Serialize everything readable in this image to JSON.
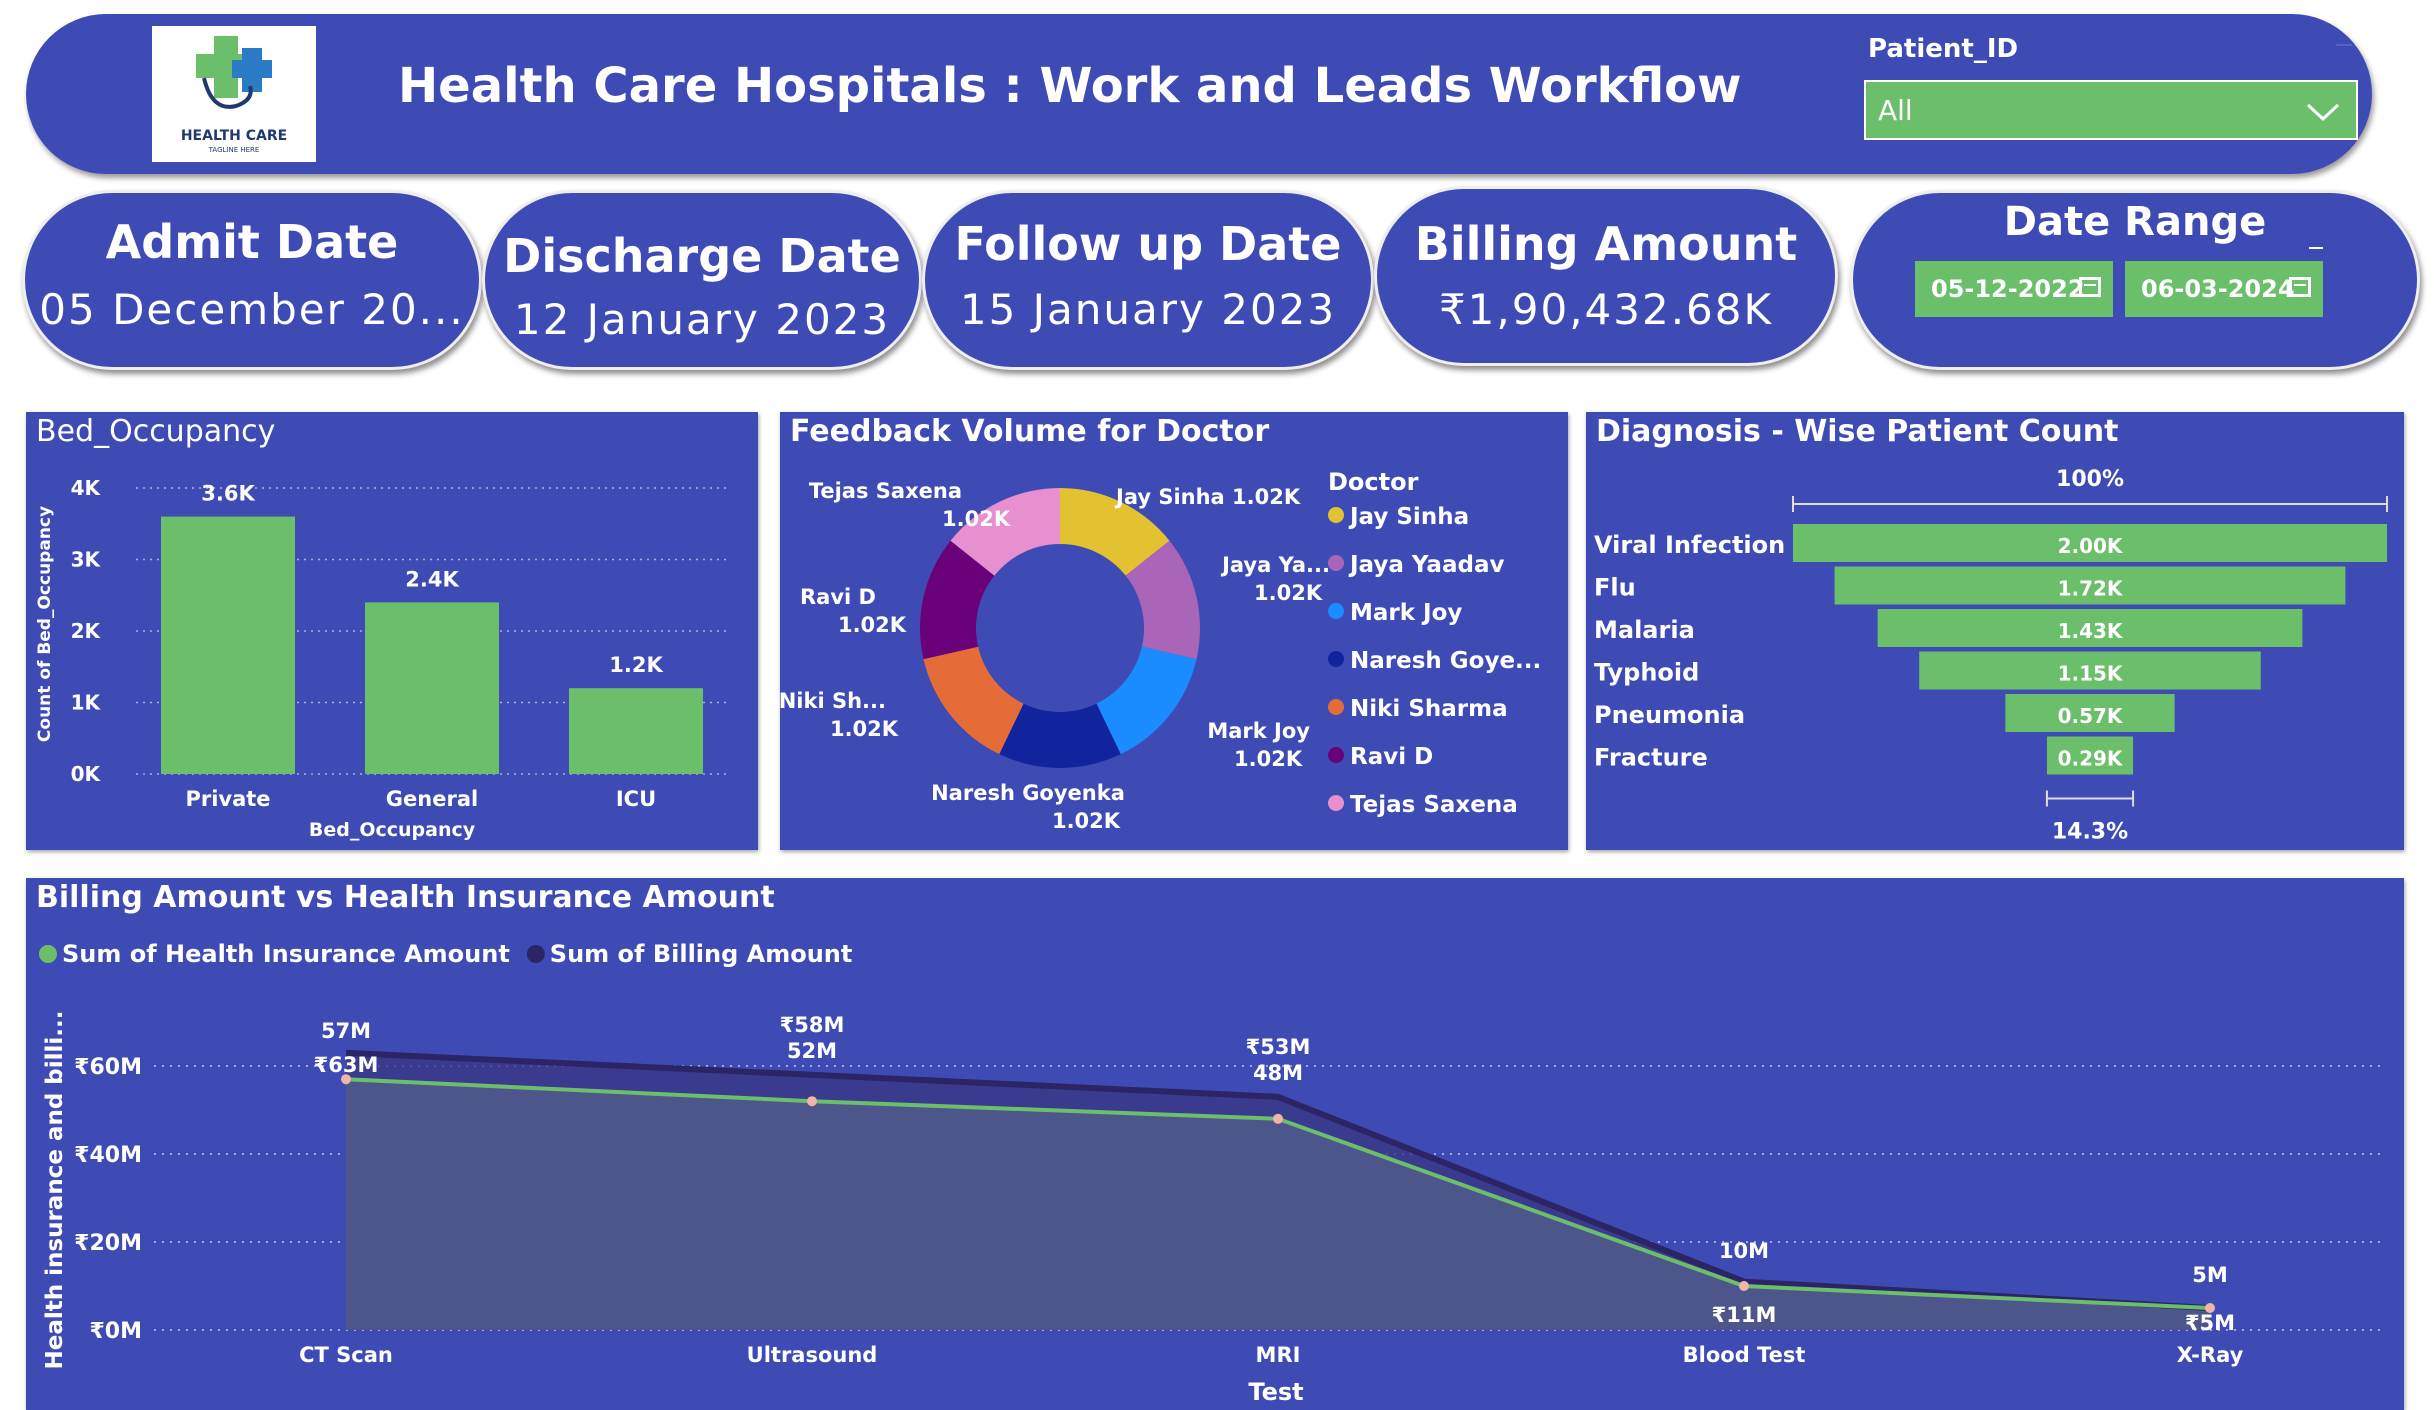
{
  "header": {
    "title": "Health Care Hospitals : Work and Leads Workflow",
    "logo_text": "HEALTH CARE",
    "logo_tagline": "TAGLINE HERE",
    "filter_label": "Patient_ID",
    "filter_value": "All"
  },
  "cards": [
    {
      "title": "Admit Date",
      "value": "05 December 20..."
    },
    {
      "title": "Discharge Date",
      "value": "12 January 2023"
    },
    {
      "title": "Follow up Date",
      "value": "15 January 2023"
    },
    {
      "title": "Billing Amount",
      "value": "₹1,90,432.68K"
    }
  ],
  "date_range": {
    "title": "Date Range",
    "start": "05-12-2022",
    "end": "06-03-2024"
  },
  "colors": {
    "panel": "#3f4bb5",
    "green": "#6cbf6a",
    "dark_line": "#2b2566"
  },
  "bed_occupancy": {
    "title": "Bed_Occupancy",
    "chart_data": {
      "type": "bar",
      "categories": [
        "Private",
        "General",
        "ICU"
      ],
      "values": [
        3600,
        2400,
        1200
      ],
      "data_labels": [
        "3.6K",
        "2.4K",
        "1.2K"
      ],
      "xlabel": "Bed_Occupancy",
      "ylabel": "Count of Bed_Occupancy",
      "yticks": [
        "0K",
        "1K",
        "2K",
        "3K",
        "4K"
      ],
      "ylim": [
        0,
        4000
      ],
      "color": "#6cbf6a"
    }
  },
  "feedback": {
    "title": "Feedback Volume for Doctor",
    "legend_title": "Doctor",
    "legend": [
      "Jay Sinha",
      "Jaya Yaadav",
      "Mark Joy",
      "Naresh Goye...",
      "Niki Sharma",
      "Ravi D",
      "Tejas Saxena"
    ],
    "chart_data": {
      "type": "pie",
      "labels": [
        "Jay Sinha",
        "Jaya Yaadav",
        "Mark Joy",
        "Naresh Goyenka",
        "Niki Sharma",
        "Ravi D",
        "Tejas Saxena"
      ],
      "values": [
        1020,
        1020,
        1020,
        1020,
        1020,
        1020,
        1020
      ],
      "colors": [
        "#e2c231",
        "#a965b8",
        "#1a8cff",
        "#12239e",
        "#e66c37",
        "#6b007b",
        "#e78fcf"
      ],
      "slice_labels": [
        {
          "name": "Jay Sinha",
          "value": "1.02K"
        },
        {
          "name": "Jaya Ya...",
          "value": "1.02K"
        },
        {
          "name": "Mark Joy",
          "value": "1.02K"
        },
        {
          "name": "Naresh Goyenka",
          "value": "1.02K"
        },
        {
          "name": "Niki Sh...",
          "value": "1.02K"
        },
        {
          "name": "Ravi D",
          "value": "1.02K"
        },
        {
          "name": "Tejas Saxena",
          "value": "1.02K"
        }
      ]
    }
  },
  "diagnosis": {
    "title": "Diagnosis - Wise Patient Count",
    "top_label": "100%",
    "bottom_label": "14.3%",
    "chart_data": {
      "type": "bar",
      "categories": [
        "Viral Infection",
        "Flu",
        "Malaria",
        "Typhoid",
        "Pneumonia",
        "Fracture"
      ],
      "values": [
        2000,
        1720,
        1430,
        1150,
        570,
        290
      ],
      "data_labels": [
        "2.00K",
        "1.72K",
        "1.43K",
        "1.15K",
        "0.57K",
        "0.29K"
      ],
      "color": "#6cbf6a"
    }
  },
  "billing_vs_insurance": {
    "title": "Billing Amount vs Health Insurance Amount",
    "chart_data": {
      "type": "area",
      "categories": [
        "CT Scan",
        "Ultrasound",
        "MRI",
        "Blood Test",
        "X-Ray"
      ],
      "series": [
        {
          "name": "Sum of Health Insurance Amount",
          "values": [
            57,
            52,
            48,
            10,
            5
          ],
          "labels": [
            "57M",
            "52M",
            "48M",
            "10M",
            "5M"
          ],
          "color": "#6cbf6a"
        },
        {
          "name": "Sum of Billing Amount",
          "values": [
            63,
            58,
            53,
            11,
            5
          ],
          "labels": [
            "₹63M",
            "₹58M",
            "₹53M",
            "₹11M",
            "₹5M"
          ],
          "color": "#2b2566"
        }
      ],
      "xlabel": "Test",
      "ylabel": "Health insurance and billi...",
      "yticks": [
        "₹0M",
        "₹20M",
        "₹40M",
        "₹60M"
      ],
      "ylim": [
        0,
        65
      ]
    }
  }
}
